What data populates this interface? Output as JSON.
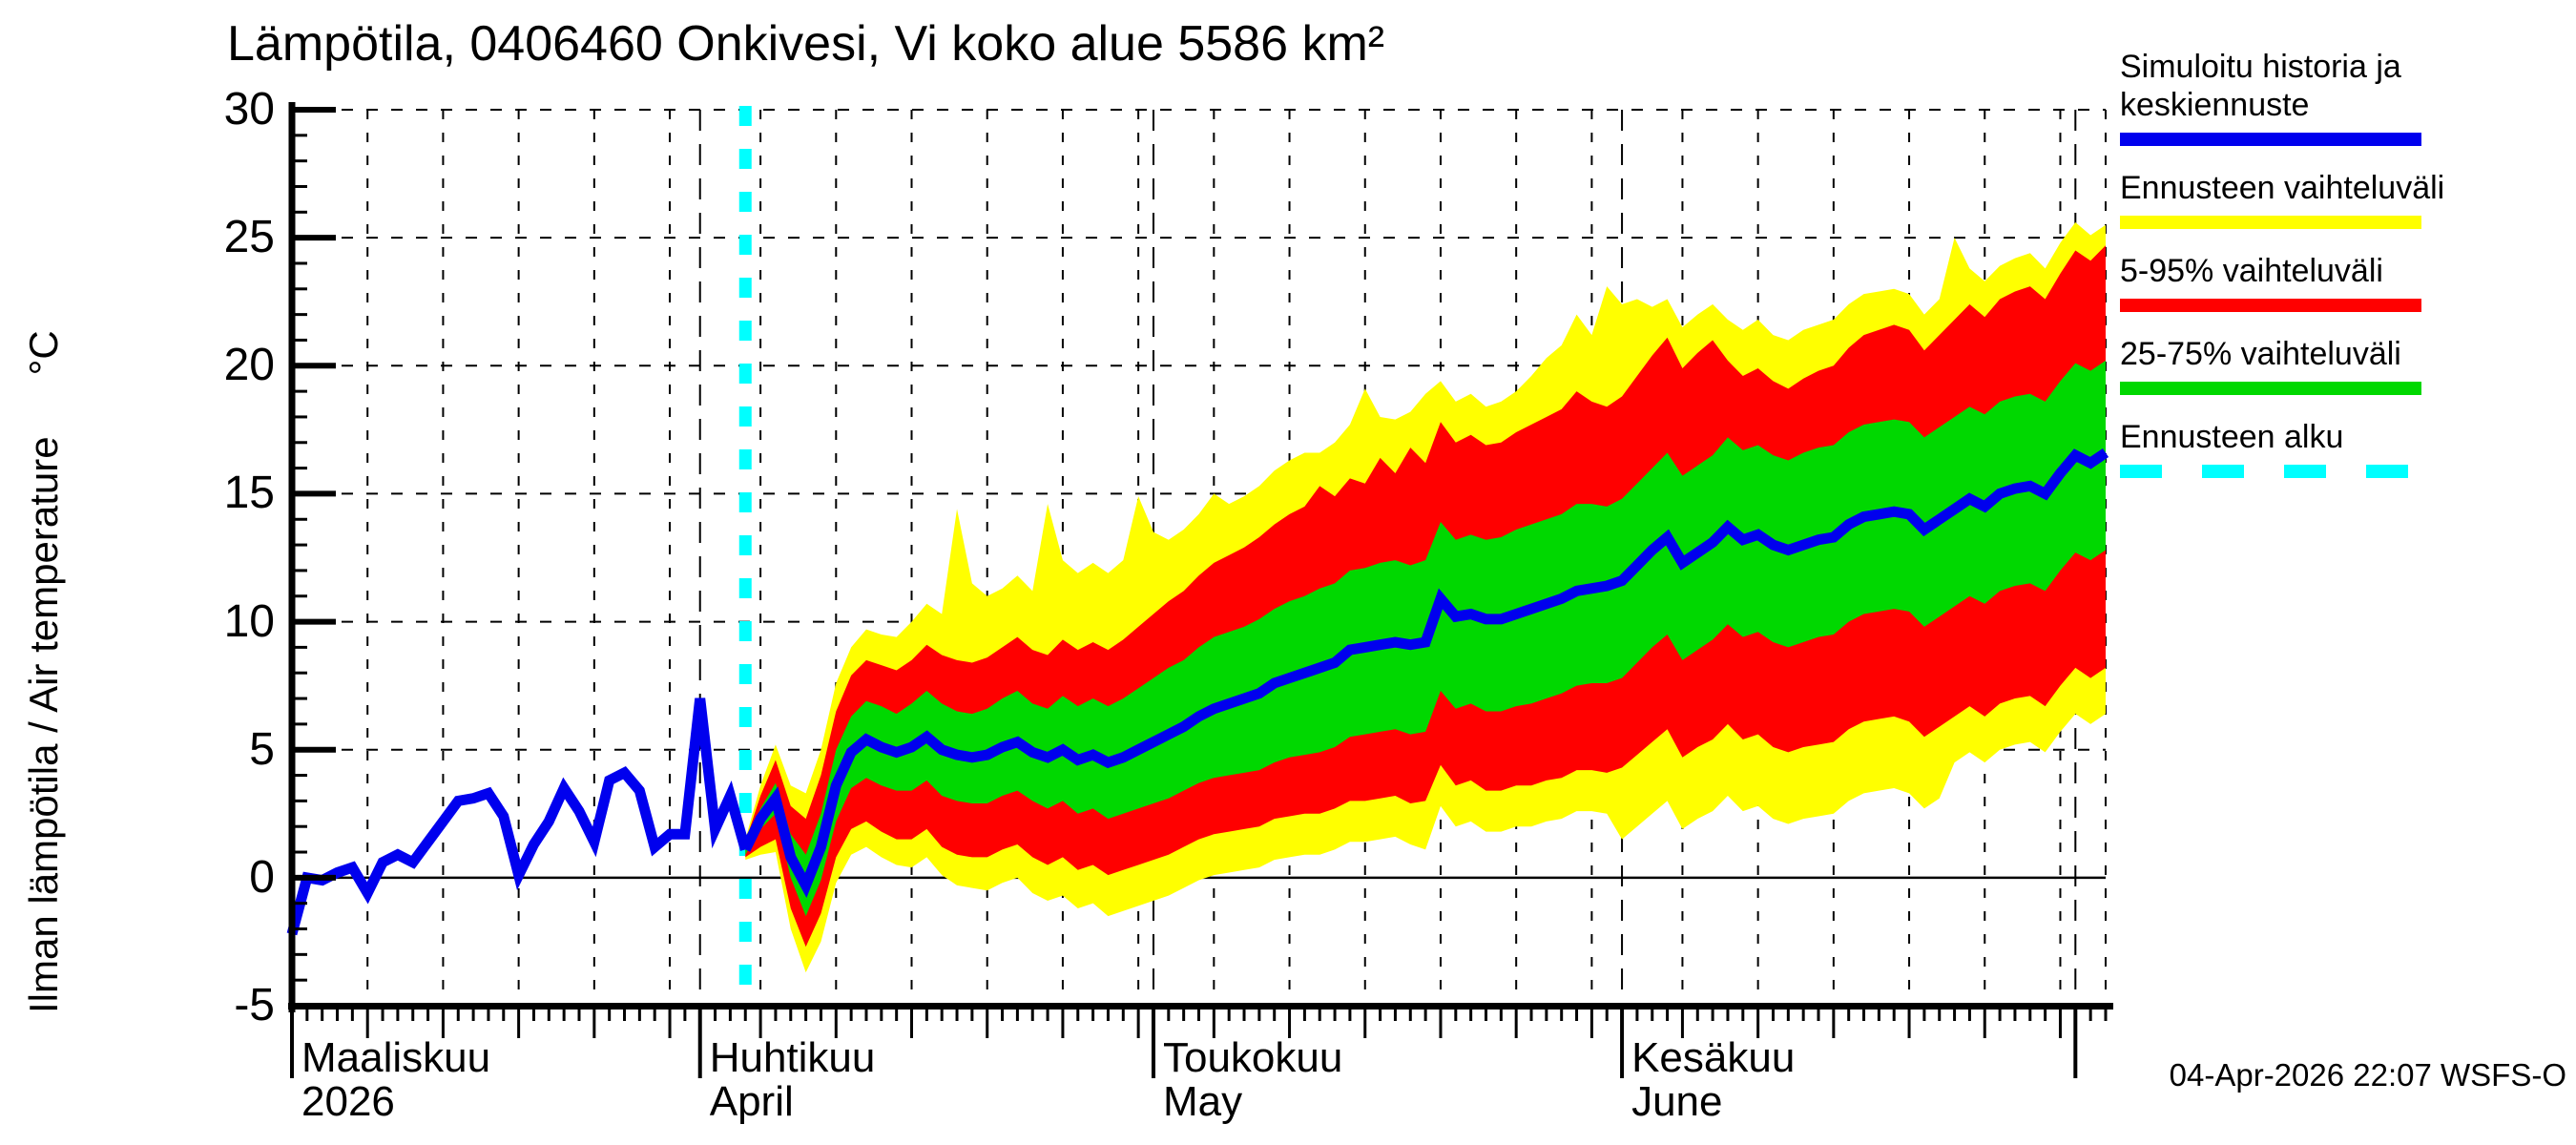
{
  "title": "Lämpötila, 0406460 Onkivesi, Vi koko alue 5586 km²",
  "y_axis": {
    "label": "Ilman lämpötila / Air temperature",
    "unit": "°C"
  },
  "footer": {
    "timestamp": "04-Apr-2026 22:07 WSFS-O"
  },
  "colors": {
    "history_and_median": "#0000ee",
    "forecast_range": "#ffff00",
    "p5_95_range": "#ff0000",
    "p25_75_range": "#00d800",
    "forecast_start": "#00ffff",
    "grid": "#000000",
    "background": "#ffffff"
  },
  "legend": [
    {
      "label": "Simuloitu historia ja keskiennuste",
      "color": "#0000ee",
      "style": "solid"
    },
    {
      "label": "Ennusteen vaihteluväli",
      "color": "#ffff00",
      "style": "solid"
    },
    {
      "label": "5-95% vaihteluväli",
      "color": "#ff0000",
      "style": "solid"
    },
    {
      "label": "25-75% vaihteluväli",
      "color": "#00d800",
      "style": "solid"
    },
    {
      "label": "Ennusteen alku",
      "color": "#00ffff",
      "style": "dashed"
    }
  ],
  "chart_data": {
    "type": "area",
    "title": "Lämpötila, 0406460 Onkivesi, Vi koko alue 5586 km²",
    "xlabel": "",
    "ylabel": "Ilman lämpötila / Air temperature (°C)",
    "ylim": [
      -5,
      30
    ],
    "grid": true,
    "legend_position": "right",
    "y_major_ticks": [
      30,
      25,
      20,
      15,
      10,
      5,
      0,
      -5
    ],
    "y_minor_tick_step": 1,
    "x_axis": {
      "start_date": "2026-03-05",
      "end_date": "2026-07-03",
      "days_total": 120,
      "forecast_start_day": 30,
      "forecast_start_date": "2026-04-04",
      "months": [
        {
          "fi": "Maaliskuu",
          "en": "2026",
          "day": 0
        },
        {
          "fi": "Huhtikuu",
          "en": "April",
          "day": 27
        },
        {
          "fi": "Toukokuu",
          "en": "May",
          "day": 57
        },
        {
          "fi": "Kesäkuu",
          "en": "June",
          "day": 88
        }
      ],
      "month_tick_days": [
        0,
        27,
        57,
        88,
        118
      ],
      "gridline_days": [
        5,
        10,
        15,
        20,
        25,
        27,
        31,
        36,
        41,
        46,
        51,
        56,
        57,
        61,
        66,
        71,
        76,
        81,
        86,
        88,
        92,
        97,
        102,
        107,
        112,
        117,
        118,
        120
      ]
    },
    "history": {
      "name": "Simuloitu historia",
      "start_day": 0,
      "values": [
        -2.2,
        0.0,
        -0.1,
        0.2,
        0.4,
        -0.6,
        0.6,
        0.9,
        0.6,
        1.4,
        2.2,
        3.0,
        3.1,
        3.3,
        2.4,
        0.1,
        1.3,
        2.2,
        3.5,
        2.6,
        1.4,
        3.8,
        4.1,
        3.4,
        1.2,
        1.7,
        1.7,
        7.0,
        1.9,
        3.2,
        1.1
      ]
    },
    "forecast": {
      "start_day": 30,
      "median": [
        1.1,
        2.3,
        3.1,
        0.8,
        -0.3,
        1.2,
        3.6,
        4.9,
        5.4,
        5.1,
        4.9,
        5.1,
        5.5,
        5.0,
        4.8,
        4.7,
        4.8,
        5.1,
        5.3,
        4.9,
        4.7,
        5.0,
        4.6,
        4.8,
        4.5,
        4.7,
        5.0,
        5.3,
        5.6,
        5.9,
        6.3,
        6.6,
        6.8,
        7.0,
        7.2,
        7.6,
        7.8,
        8.0,
        8.2,
        8.4,
        8.9,
        9.0,
        9.1,
        9.2,
        9.1,
        9.2,
        10.9,
        10.2,
        10.3,
        10.1,
        10.1,
        10.3,
        10.5,
        10.7,
        10.9,
        11.2,
        11.3,
        11.4,
        11.6,
        12.2,
        12.8,
        13.3,
        12.3,
        12.7,
        13.1,
        13.7,
        13.2,
        13.4,
        13.0,
        12.8,
        13.0,
        13.2,
        13.3,
        13.8,
        14.1,
        14.2,
        14.3,
        14.2,
        13.6,
        14.0,
        14.4,
        14.8,
        14.5,
        15.0,
        15.2,
        15.3,
        15.0,
        15.8,
        16.5,
        16.2,
        16.6
      ],
      "p75": [
        1.3,
        2.7,
        3.7,
        1.7,
        0.9,
        2.5,
        5.0,
        6.3,
        6.9,
        6.7,
        6.4,
        6.8,
        7.3,
        6.8,
        6.5,
        6.4,
        6.6,
        7.0,
        7.3,
        6.8,
        6.6,
        7.1,
        6.7,
        7.0,
        6.7,
        7.0,
        7.4,
        7.8,
        8.2,
        8.5,
        9.0,
        9.4,
        9.6,
        9.8,
        10.1,
        10.5,
        10.8,
        11.0,
        11.3,
        11.5,
        12.0,
        12.1,
        12.3,
        12.4,
        12.2,
        12.4,
        13.9,
        13.2,
        13.4,
        13.2,
        13.3,
        13.6,
        13.8,
        14.0,
        14.2,
        14.6,
        14.6,
        14.5,
        14.8,
        15.4,
        16.0,
        16.6,
        15.7,
        16.1,
        16.5,
        17.2,
        16.7,
        16.9,
        16.5,
        16.3,
        16.6,
        16.8,
        16.9,
        17.4,
        17.7,
        17.8,
        17.9,
        17.8,
        17.2,
        17.6,
        18.0,
        18.4,
        18.1,
        18.6,
        18.8,
        18.9,
        18.6,
        19.4,
        20.1,
        19.8,
        20.2
      ],
      "p25": [
        0.9,
        1.9,
        2.5,
        0.0,
        -1.5,
        -0.1,
        2.2,
        3.5,
        3.9,
        3.6,
        3.4,
        3.4,
        3.8,
        3.2,
        3.0,
        2.9,
        2.9,
        3.2,
        3.4,
        3.0,
        2.7,
        3.0,
        2.5,
        2.7,
        2.3,
        2.5,
        2.7,
        2.9,
        3.1,
        3.4,
        3.7,
        3.9,
        4.0,
        4.1,
        4.2,
        4.5,
        4.7,
        4.8,
        4.9,
        5.1,
        5.5,
        5.6,
        5.7,
        5.8,
        5.6,
        5.7,
        7.3,
        6.6,
        6.8,
        6.5,
        6.5,
        6.7,
        6.8,
        7.0,
        7.2,
        7.5,
        7.6,
        7.6,
        7.8,
        8.4,
        9.0,
        9.5,
        8.5,
        8.9,
        9.3,
        9.9,
        9.4,
        9.6,
        9.2,
        9.0,
        9.2,
        9.4,
        9.5,
        10.0,
        10.3,
        10.4,
        10.5,
        10.4,
        9.8,
        10.2,
        10.6,
        11.0,
        10.7,
        11.2,
        11.4,
        11.5,
        11.2,
        12.0,
        12.7,
        12.4,
        12.8
      ],
      "p95": [
        1.4,
        3.2,
        4.6,
        2.8,
        2.3,
        4.0,
        6.5,
        7.9,
        8.5,
        8.3,
        8.1,
        8.5,
        9.1,
        8.7,
        8.5,
        8.4,
        8.6,
        9.0,
        9.4,
        8.9,
        8.7,
        9.3,
        8.9,
        9.2,
        8.9,
        9.3,
        9.8,
        10.3,
        10.8,
        11.2,
        11.8,
        12.3,
        12.6,
        12.9,
        13.3,
        13.8,
        14.2,
        14.5,
        15.3,
        14.9,
        15.6,
        15.4,
        16.4,
        15.8,
        16.8,
        16.2,
        17.8,
        17.0,
        17.3,
        16.9,
        17.0,
        17.4,
        17.7,
        18.0,
        18.3,
        19.0,
        18.6,
        18.4,
        18.8,
        19.6,
        20.4,
        21.1,
        19.9,
        20.5,
        21.0,
        20.2,
        19.6,
        19.9,
        19.4,
        19.1,
        19.5,
        19.8,
        20.0,
        20.7,
        21.2,
        21.4,
        21.6,
        21.4,
        20.6,
        21.2,
        21.8,
        22.4,
        21.9,
        22.6,
        22.9,
        23.1,
        22.6,
        23.6,
        24.5,
        24.1,
        24.7
      ],
      "p5": [
        0.8,
        1.2,
        1.5,
        -1.2,
        -2.7,
        -1.4,
        0.8,
        1.9,
        2.2,
        1.8,
        1.5,
        1.5,
        1.9,
        1.2,
        0.9,
        0.8,
        0.8,
        1.1,
        1.3,
        0.8,
        0.5,
        0.8,
        0.3,
        0.5,
        0.1,
        0.3,
        0.5,
        0.7,
        0.9,
        1.2,
        1.5,
        1.7,
        1.8,
        1.9,
        2.0,
        2.3,
        2.4,
        2.5,
        2.5,
        2.7,
        3.0,
        3.0,
        3.1,
        3.2,
        2.9,
        3.0,
        4.4,
        3.6,
        3.8,
        3.4,
        3.4,
        3.6,
        3.6,
        3.8,
        3.9,
        4.2,
        4.2,
        4.1,
        4.3,
        4.8,
        5.3,
        5.8,
        4.7,
        5.1,
        5.4,
        6.0,
        5.4,
        5.6,
        5.1,
        4.9,
        5.1,
        5.2,
        5.3,
        5.8,
        6.1,
        6.2,
        6.3,
        6.1,
        5.5,
        5.9,
        6.3,
        6.7,
        6.3,
        6.8,
        7.0,
        7.1,
        6.7,
        7.5,
        8.2,
        7.8,
        8.2
      ],
      "max": [
        1.5,
        3.6,
        5.2,
        3.6,
        3.3,
        5.0,
        7.6,
        9.0,
        9.7,
        9.5,
        9.4,
        10.0,
        10.7,
        10.3,
        14.4,
        11.5,
        11.0,
        11.3,
        11.8,
        11.2,
        14.6,
        12.4,
        11.9,
        12.3,
        11.9,
        12.4,
        14.9,
        13.5,
        13.2,
        13.6,
        14.2,
        15.0,
        14.6,
        14.9,
        15.3,
        15.9,
        16.3,
        16.6,
        16.6,
        17.0,
        17.7,
        19.1,
        18.0,
        17.9,
        18.2,
        18.9,
        19.4,
        18.6,
        18.9,
        18.4,
        18.6,
        19.0,
        19.6,
        20.3,
        20.8,
        22.0,
        21.2,
        23.1,
        22.4,
        22.6,
        22.3,
        22.6,
        21.5,
        22.0,
        22.4,
        21.8,
        21.4,
        21.8,
        21.2,
        21.0,
        21.4,
        21.6,
        21.8,
        22.4,
        22.8,
        22.9,
        23.0,
        22.8,
        22.0,
        22.6,
        25.0,
        23.8,
        23.3,
        23.9,
        24.2,
        24.4,
        23.8,
        24.8,
        25.6,
        25.1,
        25.5
      ],
      "min": [
        0.7,
        0.9,
        1.0,
        -2.0,
        -3.7,
        -2.5,
        -0.2,
        0.9,
        1.2,
        0.8,
        0.5,
        0.4,
        0.8,
        0.1,
        -0.3,
        -0.4,
        -0.5,
        -0.2,
        0.0,
        -0.6,
        -0.9,
        -0.7,
        -1.2,
        -1.0,
        -1.5,
        -1.3,
        -1.1,
        -0.9,
        -0.7,
        -0.4,
        -0.1,
        0.1,
        0.2,
        0.3,
        0.4,
        0.7,
        0.8,
        0.9,
        0.9,
        1.1,
        1.4,
        1.4,
        1.5,
        1.6,
        1.3,
        1.1,
        2.8,
        2.0,
        2.2,
        1.8,
        1.8,
        2.0,
        2.0,
        2.2,
        2.3,
        2.6,
        2.6,
        2.5,
        1.5,
        2.0,
        2.5,
        3.0,
        1.9,
        2.3,
        2.6,
        3.2,
        2.6,
        2.8,
        2.3,
        2.1,
        2.3,
        2.4,
        2.5,
        3.0,
        3.3,
        3.4,
        3.5,
        3.3,
        2.7,
        3.1,
        4.5,
        4.9,
        4.5,
        5.0,
        5.2,
        5.3,
        4.9,
        5.7,
        6.4,
        6.0,
        6.4
      ]
    }
  }
}
